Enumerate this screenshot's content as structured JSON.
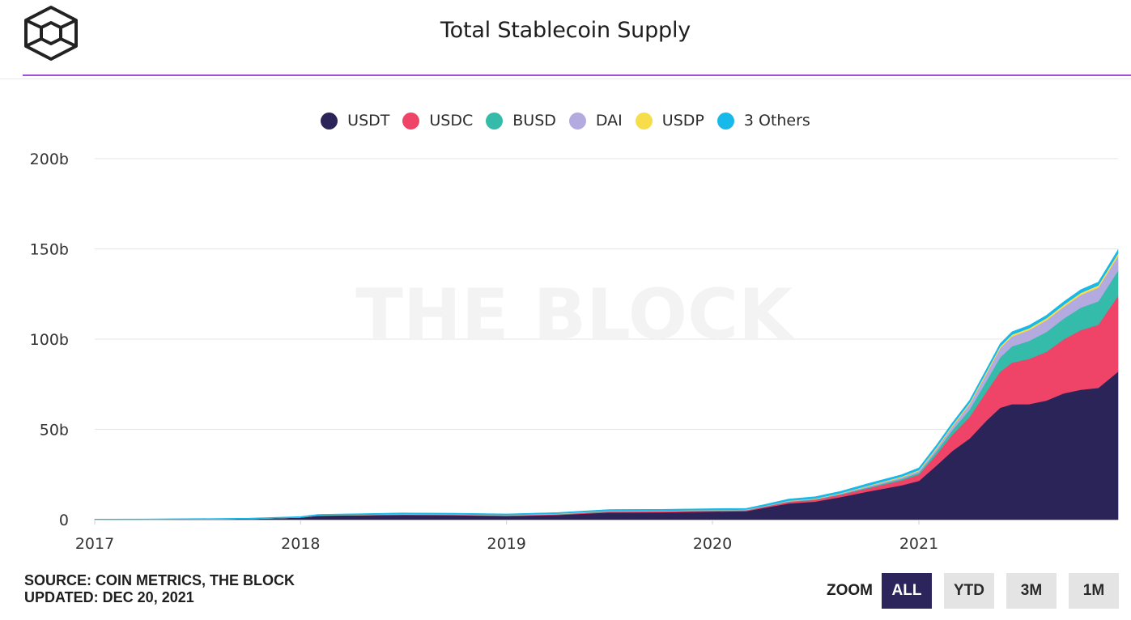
{
  "header": {
    "title": "Total Stablecoin Supply",
    "logo_icon": "the-block-cube-logo"
  },
  "colors": {
    "accent_rule": "#a54ed8",
    "grid": "#e6e6e6",
    "watermark": "#f3f3f3"
  },
  "watermark": "THE BLOCK",
  "footer": {
    "source": "SOURCE: COIN METRICS, THE BLOCK",
    "updated": "UPDATED: DEC 20, 2021"
  },
  "zoom": {
    "label": "ZOOM",
    "options": [
      "ALL",
      "YTD",
      "3M",
      "1M"
    ],
    "selected": "ALL"
  },
  "chart_data": {
    "type": "area",
    "stacked": true,
    "title": "Total Stablecoin Supply",
    "x_axis": {
      "ticks": [
        "2017",
        "2018",
        "2019",
        "2020",
        "2021"
      ],
      "range": [
        "2017-01-01",
        "2021-12-20"
      ]
    },
    "y_axis": {
      "ticks": [
        "0",
        "50b",
        "100b",
        "150b",
        "200b"
      ],
      "range": [
        0,
        200
      ],
      "unit": "billion USD"
    },
    "grid": "horizontal",
    "legend_position": "top-center",
    "x": [
      "2017-01-01",
      "2017-04-01",
      "2017-07-01",
      "2017-10-01",
      "2018-01-01",
      "2018-02-01",
      "2018-07-01",
      "2018-10-01",
      "2019-01-01",
      "2019-04-01",
      "2019-07-01",
      "2019-10-01",
      "2020-01-01",
      "2020-03-01",
      "2020-04-01",
      "2020-05-15",
      "2020-07-01",
      "2020-08-15",
      "2020-10-01",
      "2020-12-01",
      "2021-01-01",
      "2021-02-01",
      "2021-03-01",
      "2021-04-01",
      "2021-05-01",
      "2021-05-25",
      "2021-06-15",
      "2021-07-15",
      "2021-08-15",
      "2021-09-15",
      "2021-10-15",
      "2021-11-15",
      "2021-12-20"
    ],
    "series": [
      {
        "name": "USDT",
        "color": "#2b2459",
        "values": [
          0.01,
          0.05,
          0.2,
          0.4,
          1.2,
          2.2,
          2.7,
          2.5,
          2.0,
          2.6,
          4.0,
          4.1,
          4.5,
          4.7,
          6.5,
          9.0,
          10.0,
          12.5,
          15.5,
          19.0,
          21.5,
          30.0,
          38.0,
          45.0,
          55.0,
          62.0,
          64.0,
          64.0,
          66.0,
          70.0,
          72.0,
          73.0,
          82.0
        ]
      },
      {
        "name": "USDC",
        "color": "#ef4467",
        "values": [
          0,
          0,
          0,
          0,
          0,
          0.05,
          0.1,
          0.2,
          0.3,
          0.4,
          0.5,
          0.5,
          0.5,
          0.5,
          0.6,
          0.8,
          1.0,
          1.3,
          1.8,
          2.8,
          3.5,
          6.0,
          9.0,
          12.0,
          16.0,
          20.0,
          23.0,
          25.0,
          27.0,
          30.0,
          33.0,
          35.0,
          42.0
        ]
      },
      {
        "name": "BUSD",
        "color": "#35bba9",
        "values": [
          0,
          0,
          0,
          0,
          0,
          0,
          0,
          0,
          0,
          0,
          0.1,
          0.1,
          0.1,
          0.1,
          0.1,
          0.2,
          0.2,
          0.3,
          0.5,
          0.8,
          1.0,
          1.8,
          2.5,
          4.0,
          6.0,
          8.0,
          9.0,
          10.0,
          11.0,
          11.5,
          12.5,
          13.0,
          14.0
        ]
      },
      {
        "name": "DAI",
        "color": "#b3aae0",
        "values": [
          0,
          0,
          0,
          0,
          0,
          0.1,
          0.2,
          0.2,
          0.2,
          0.2,
          0.2,
          0.2,
          0.2,
          0.2,
          0.2,
          0.3,
          0.3,
          0.4,
          0.6,
          0.8,
          1.0,
          1.5,
          2.0,
          3.0,
          4.0,
          5.0,
          5.5,
          6.0,
          6.5,
          6.5,
          7.0,
          7.5,
          8.0
        ]
      },
      {
        "name": "USDP",
        "color": "#f7dd4a",
        "values": [
          0,
          0,
          0,
          0,
          0,
          0.05,
          0.1,
          0.1,
          0.1,
          0.1,
          0.1,
          0.1,
          0.1,
          0.1,
          0.1,
          0.2,
          0.2,
          0.2,
          0.3,
          0.4,
          0.5,
          0.6,
          0.7,
          0.8,
          1.0,
          1.0,
          1.0,
          1.0,
          1.1,
          1.1,
          1.2,
          1.3,
          1.5
        ]
      },
      {
        "name": "3 Others",
        "color": "#17b9ea",
        "values": [
          0.3,
          0.3,
          0.4,
          0.4,
          0.5,
          0.5,
          0.6,
          0.6,
          0.6,
          0.6,
          0.7,
          0.7,
          0.7,
          0.7,
          0.8,
          0.9,
          1.0,
          1.0,
          1.1,
          1.1,
          1.2,
          1.3,
          1.3,
          1.4,
          1.5,
          1.5,
          1.6,
          1.6,
          1.6,
          1.7,
          1.7,
          1.8,
          2.0
        ]
      }
    ]
  }
}
